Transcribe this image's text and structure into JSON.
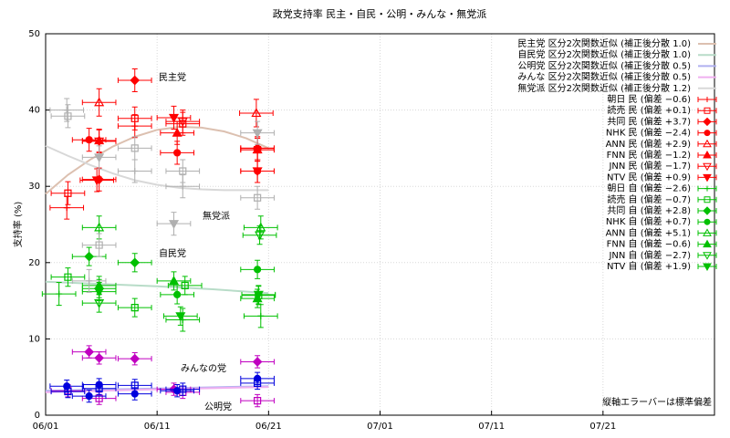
{
  "chart_data": {
    "type": "scatter",
    "title": "政党支持率 民主・自民・公明・みんな・無党派",
    "y_label": "支持率 (%)",
    "note": "縦軸エラーバーは標準偏差",
    "annotations": [
      "民主党",
      "無党派",
      "自民党",
      "みんなの党",
      "公明党"
    ],
    "annotation_colors": [
      "#ff0000",
      "#b0b0b0",
      "#00c000",
      "#c000c0",
      "#0000dd"
    ],
    "xlim": [
      0,
      60
    ],
    "xticks": [
      {
        "value": 0,
        "label": "06/01"
      },
      {
        "value": 10,
        "label": "06/11"
      },
      {
        "value": 20,
        "label": "06/21"
      },
      {
        "value": 30,
        "label": "07/01"
      },
      {
        "value": 40,
        "label": "07/11"
      },
      {
        "value": 50,
        "label": "07/21"
      }
    ],
    "ylim": [
      0,
      50
    ],
    "yticks": [
      0,
      10,
      20,
      30,
      40,
      50
    ],
    "grid": true,
    "curves": [
      {
        "name": "民主党 区分2次関数近似 (補正後分散 1.0)",
        "color": "#dcc0b0",
        "x": [
          0,
          2,
          4,
          6,
          8,
          10,
          12,
          14,
          16,
          18,
          20
        ],
        "values": [
          29,
          31.5,
          33.5,
          35.2,
          36.5,
          37.4,
          37.8,
          37.7,
          37.2,
          36.3,
          35.0
        ]
      },
      {
        "name": "自民党 区分2次関数近似 (補正後分散 1.0)",
        "color": "#b8dcc8",
        "x": [
          0,
          5,
          10,
          15,
          20
        ],
        "values": [
          17.5,
          17.2,
          16.9,
          16.5,
          16.0
        ]
      },
      {
        "name": "公明党 区分2次関数近似 (補正後分散 0.5)",
        "color": "#b0b0f0",
        "x": [
          0,
          10,
          20
        ],
        "values": [
          3.2,
          3.5,
          3.8
        ]
      },
      {
        "name": "みんな 区分2次関数近似 (補正後分散 0.5)",
        "color": "#f0b0f0",
        "x": [
          0,
          10,
          20
        ],
        "values": [
          3.0,
          3.4,
          3.7
        ]
      },
      {
        "name": "無党派 区分2次関数近似 (補正後分散 1.2)",
        "color": "#d8d8d8",
        "x": [
          0,
          2,
          4,
          6,
          8,
          10,
          12,
          14,
          16,
          18,
          20
        ],
        "values": [
          35.3,
          34.0,
          32.8,
          31.7,
          30.8,
          30.2,
          29.8,
          29.6,
          29.5,
          29.5,
          29.5
        ]
      }
    ],
    "series": [
      {
        "name": "朝日 民 (偏差 −0.6)",
        "color": "#ff0000",
        "marker": "plus",
        "x": [
          1.9,
          8.0,
          19.0
        ],
        "values": [
          27.2,
          37.9,
          35.0
        ],
        "xerr": 1.5,
        "yerr": 1.5
      },
      {
        "name": "読売 民 (偏差 +0.1)",
        "color": "#ff0000",
        "marker": "box-open",
        "x": [
          2.0,
          8.0,
          12.3,
          19.0
        ],
        "values": [
          29.1,
          38.9,
          38.2,
          34.8
        ],
        "xerr": 1.5,
        "yerr": 1.5
      },
      {
        "name": "共同 民 (偏差 +3.7)",
        "color": "#ff0000",
        "marker": "diamond",
        "x": [
          4.8,
          8.0,
          19.0
        ],
        "values": [
          30.9,
          43.9,
          35.0
        ],
        "xerr": 1.5,
        "yerr": 1.5
      },
      {
        "name": "NHK 民 (偏差 −2.4)",
        "color": "#ff0000",
        "marker": "circle",
        "x": [
          3.9,
          11.8,
          19.0
        ],
        "values": [
          36.1,
          34.4,
          32.0
        ],
        "xerr": 1.5,
        "yerr": 1.5
      },
      {
        "name": "ANN 民 (偏差 +2.9)",
        "color": "#ff0000",
        "marker": "triangle-up-open",
        "x": [
          4.8,
          18.9
        ],
        "values": [
          41.0,
          39.6
        ],
        "xerr": 1.5,
        "yerr": 1.8
      },
      {
        "name": "FNN 民 (偏差 −1.2)",
        "color": "#ff0000",
        "marker": "triangle-up",
        "x": [
          4.8,
          11.8,
          19.0
        ],
        "values": [
          36.0,
          37.0,
          34.8
        ],
        "xerr": 1.5,
        "yerr": 1.5
      },
      {
        "name": "JNN 民 (偏差 −1.7)",
        "color": "#ff0000",
        "marker": "triangle-down-open",
        "x": [
          4.8,
          12.3
        ],
        "values": [
          35.9,
          38.5
        ],
        "xerr": 1.5,
        "yerr": 1.5
      },
      {
        "name": "NTV 民 (偏差 +0.9)",
        "color": "#ff0000",
        "marker": "triangle-down",
        "x": [
          4.6,
          11.5,
          19.0
        ],
        "values": [
          30.8,
          39.0,
          32.0
        ],
        "xerr": 1.5,
        "yerr": 1.5
      },
      {
        "name": "朝日 自 (偏差 −2.6)",
        "color": "#00c000",
        "marker": "plus",
        "x": [
          1.2,
          12.3,
          19.3
        ],
        "values": [
          15.9,
          12.5,
          13.0
        ],
        "xerr": 1.5,
        "yerr": 1.5
      },
      {
        "name": "読売 自 (偏差 −0.7)",
        "color": "#00c000",
        "marker": "box-open",
        "x": [
          2.0,
          8.0,
          12.5,
          19.1
        ],
        "values": [
          18.1,
          14.1,
          17.0,
          15.7
        ],
        "xerr": 1.5,
        "yerr": 1.2
      },
      {
        "name": "共同 自 (偏差 +2.8)",
        "color": "#00c000",
        "marker": "diamond",
        "x": [
          3.9,
          8.0
        ],
        "values": [
          20.8,
          20.0
        ],
        "xerr": 1.5,
        "yerr": 1.2
      },
      {
        "name": "NHK 自 (偏差 +0.7)",
        "color": "#00c000",
        "marker": "circle",
        "x": [
          4.8,
          11.8,
          19.0
        ],
        "values": [
          16.6,
          15.8,
          19.1
        ],
        "xerr": 1.5,
        "yerr": 1.2
      },
      {
        "name": "ANN 自 (偏差 +5.1)",
        "color": "#00c000",
        "marker": "triangle-up-open",
        "x": [
          4.8,
          19.3
        ],
        "values": [
          24.6,
          24.6
        ],
        "xerr": 1.5,
        "yerr": 1.5
      },
      {
        "name": "FNN 自 (偏差 −0.6)",
        "color": "#00c000",
        "marker": "triangle-up",
        "x": [
          4.8,
          11.5,
          19.0
        ],
        "values": [
          17.0,
          17.6,
          15.3
        ],
        "xerr": 1.5,
        "yerr": 1.2
      },
      {
        "name": "JNN 自 (偏差 −2.7)",
        "color": "#00c000",
        "marker": "triangle-down-open",
        "x": [
          4.8,
          19.2
        ],
        "values": [
          14.7,
          23.6
        ],
        "xerr": 1.5,
        "yerr": 1.2
      },
      {
        "name": "NTV 自 (偏差 +1.9)",
        "color": "#00c000",
        "marker": "triangle-down",
        "x": [
          4.8,
          12.1,
          19.1
        ],
        "values": [
          16.2,
          13.0,
          15.8
        ],
        "xerr": 1.5,
        "yerr": 1.2
      },
      {
        "color": "#b0b0b0",
        "marker": "box-open",
        "x": [
          2.0,
          4.8,
          8.0,
          12.3,
          19.0
        ],
        "values": [
          39.2,
          22.3,
          35.0,
          32.0,
          28.5
        ],
        "xerr": 1.5,
        "yerr": 1.5
      },
      {
        "color": "#b0b0b0",
        "marker": "triangle-down",
        "x": [
          4.8,
          11.5,
          19.0
        ],
        "values": [
          33.8,
          25.1,
          37.0
        ],
        "xerr": 1.5,
        "yerr": 1.5
      },
      {
        "color": "#b0b0b0",
        "marker": "plus",
        "x": [
          1.9,
          3.9,
          8.0,
          12.3
        ],
        "values": [
          40.0,
          17.6,
          32.0,
          30.0
        ],
        "xerr": 1.5,
        "yerr": 1.5
      },
      {
        "color": "#c000c0",
        "marker": "diamond",
        "x": [
          3.9,
          4.8,
          8.0,
          11.5,
          19.0
        ],
        "values": [
          8.3,
          7.5,
          7.4,
          3.4,
          7.0
        ],
        "xerr": 1.5,
        "yerr": 0.8
      },
      {
        "color": "#c000c0",
        "marker": "box-open",
        "x": [
          2.0,
          4.8,
          12.3,
          19.0
        ],
        "values": [
          3.2,
          2.2,
          3.0,
          1.9
        ],
        "xerr": 1.5,
        "yerr": 0.8
      },
      {
        "color": "#0000dd",
        "marker": "circle",
        "x": [
          1.9,
          3.9,
          4.8,
          8.0,
          11.8,
          19.0
        ],
        "values": [
          3.8,
          2.5,
          4.0,
          2.8,
          3.2,
          4.8
        ],
        "xerr": 1.5,
        "yerr": 0.8
      },
      {
        "color": "#0000dd",
        "marker": "box-open",
        "x": [
          2.0,
          4.8,
          8.0,
          12.3,
          19.0
        ],
        "values": [
          3.1,
          3.5,
          3.9,
          3.4,
          4.2
        ],
        "xerr": 1.5,
        "yerr": 0.8
      }
    ]
  }
}
